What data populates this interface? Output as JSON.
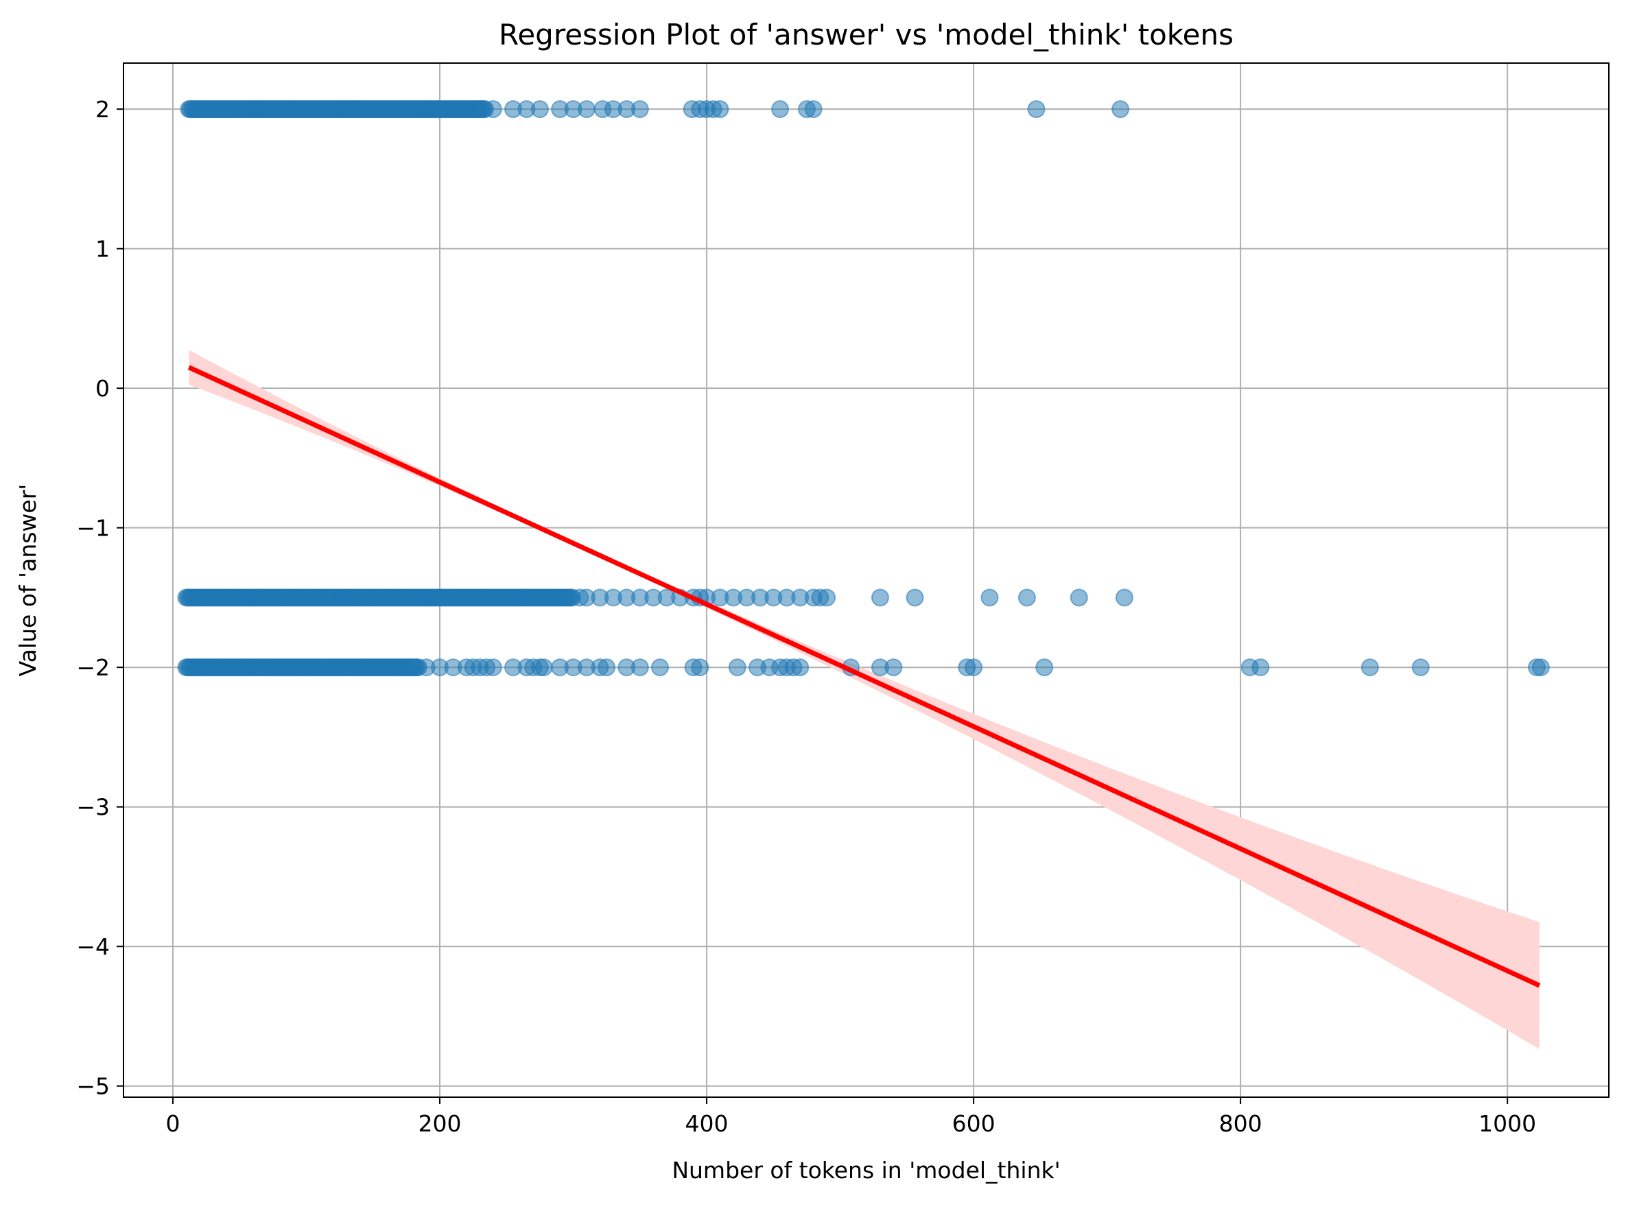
{
  "chart_data": {
    "type": "scatter",
    "title": "Regression Plot of 'answer' vs 'model_think' tokens",
    "xlabel": "Number of tokens in 'model_think'",
    "ylabel": "Value of 'answer'",
    "xlim": [
      -37,
      1076
    ],
    "ylim": [
      -5.08,
      2.33
    ],
    "xticks": [
      0,
      200,
      400,
      600,
      800,
      1000
    ],
    "yticks": [
      -5,
      -4,
      -3,
      -2,
      -1,
      0,
      1,
      2
    ],
    "xtick_labels": [
      "0",
      "200",
      "400",
      "600",
      "800",
      "1000"
    ],
    "ytick_labels": [
      "−5",
      "−4",
      "−3",
      "−2",
      "−1",
      "0",
      "1",
      "2"
    ],
    "grid": true,
    "colors": {
      "points": "#1f77b4",
      "regression_line": "#ff0000",
      "confidence_band": "#ffd6d6",
      "grid": "#b0b0b0"
    },
    "series": [
      {
        "dense_ranges": [
          {
            "y": 2,
            "x_from": 12,
            "x_to": 235
          },
          {
            "y": -1.5,
            "x_from": 10,
            "x_to": 300
          },
          {
            "y": -2,
            "x_from": 10,
            "x_to": 185
          }
        ],
        "points": [
          {
            "y": 2,
            "x": [
              240,
              255,
              265,
              275,
              290,
              300,
              310,
              322,
              330,
              340,
              350,
              389,
              395,
              400,
              405,
              410,
              455,
              475,
              480,
              647,
              710
            ]
          },
          {
            "y": -1.5,
            "x": [
              305,
              310,
              320,
              330,
              340,
              350,
              360,
              370,
              380,
              390,
              395,
              400,
              410,
              420,
              430,
              440,
              450,
              460,
              470,
              480,
              485,
              490,
              530,
              556,
              612,
              640,
              679,
              713
            ]
          },
          {
            "y": -2,
            "x": [
              190,
              200,
              210,
              220,
              225,
              230,
              235,
              240,
              255,
              265,
              270,
              275,
              278,
              290,
              300,
              310,
              320,
              325,
              340,
              350,
              365,
              390,
              395,
              423,
              438,
              447,
              455,
              460,
              465,
              470,
              508,
              530,
              540,
              595,
              600,
              653,
              807,
              815,
              897,
              935,
              1022,
              1025
            ]
          }
        ]
      }
    ],
    "regression": {
      "x_start": 12,
      "y_start": 0.15,
      "x_end": 1024,
      "y_end": -4.28,
      "ci_upper_end": -3.82,
      "ci_lower_end": -4.73
    }
  }
}
